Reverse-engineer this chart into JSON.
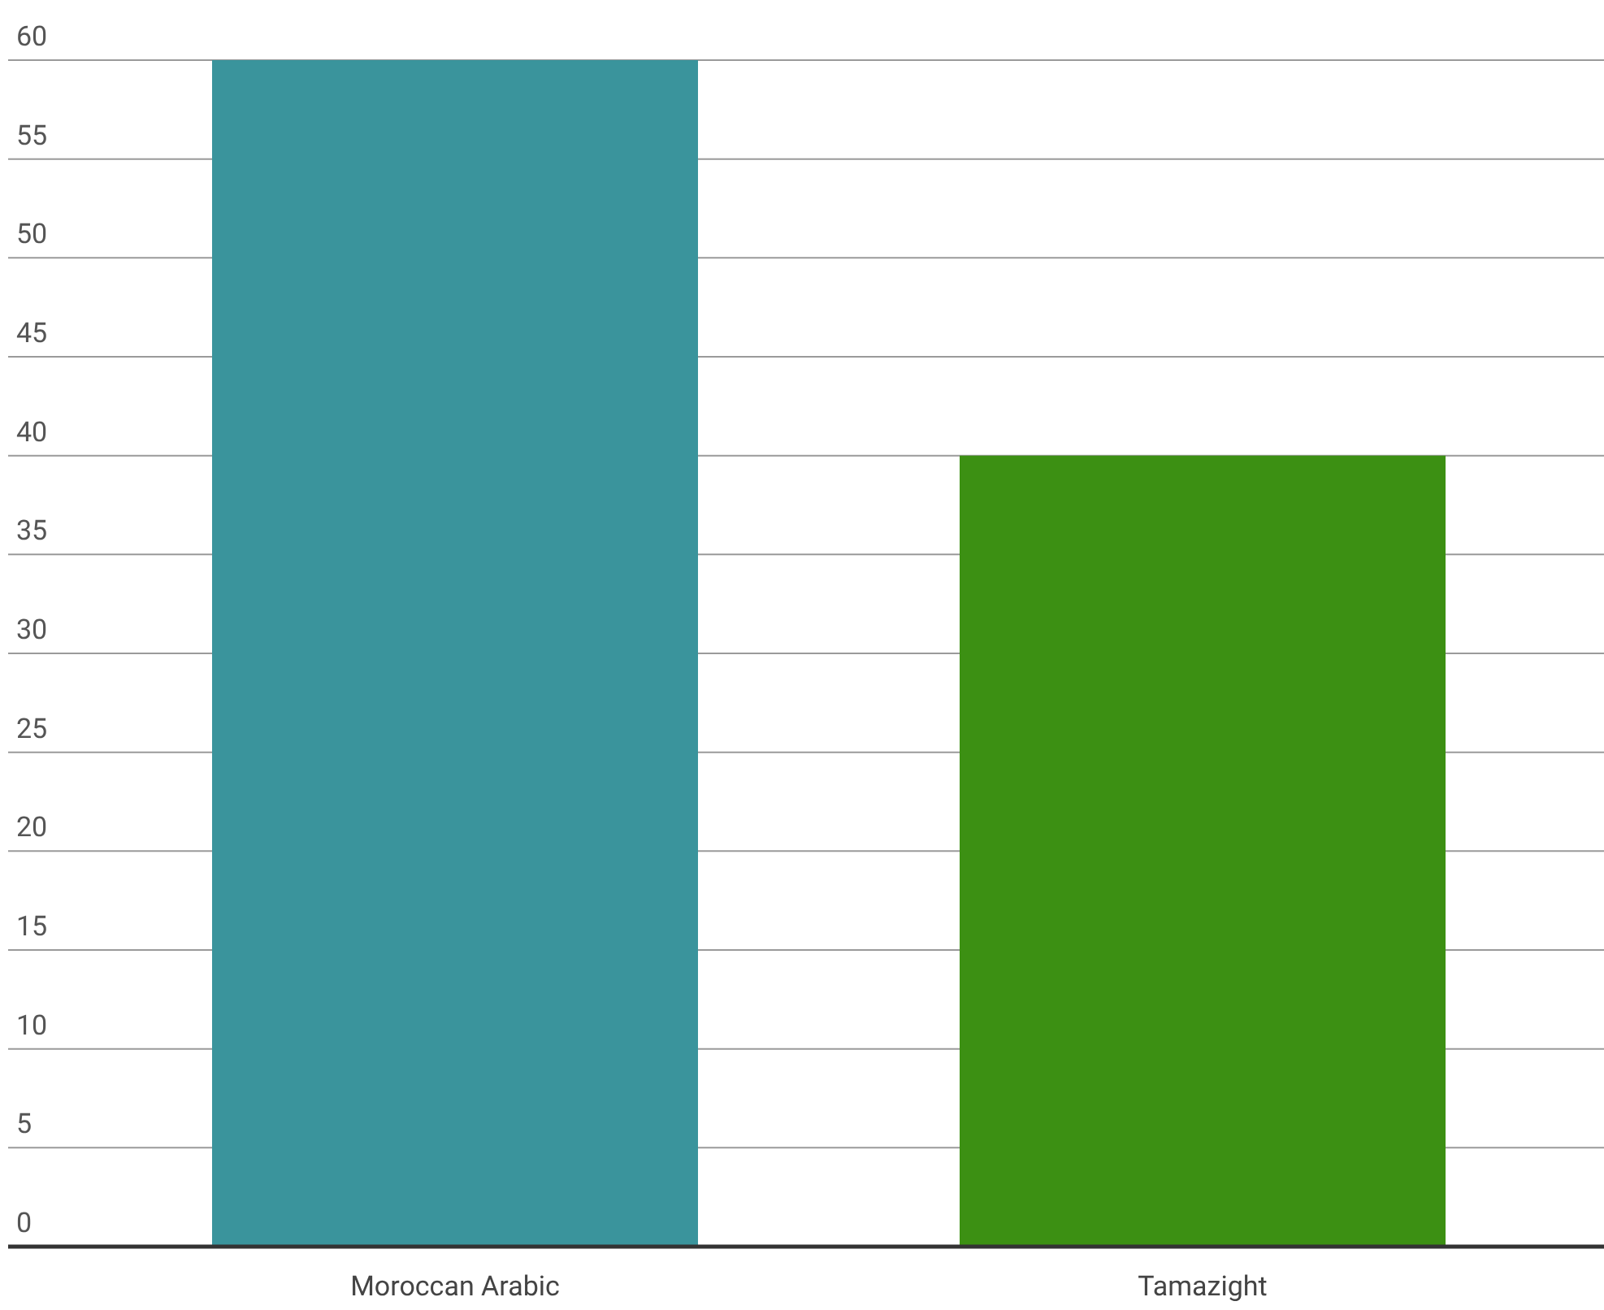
{
  "chart_data": {
    "type": "bar",
    "categories": [
      "Moroccan Arabic",
      "Tamazight"
    ],
    "values": [
      60,
      40
    ],
    "colors": [
      "#3a949c",
      "#3c9013"
    ],
    "ylim": [
      0,
      60
    ],
    "yticks": [
      0,
      5,
      10,
      15,
      20,
      25,
      30,
      35,
      40,
      45,
      50,
      55,
      60
    ],
    "grid": "y"
  }
}
